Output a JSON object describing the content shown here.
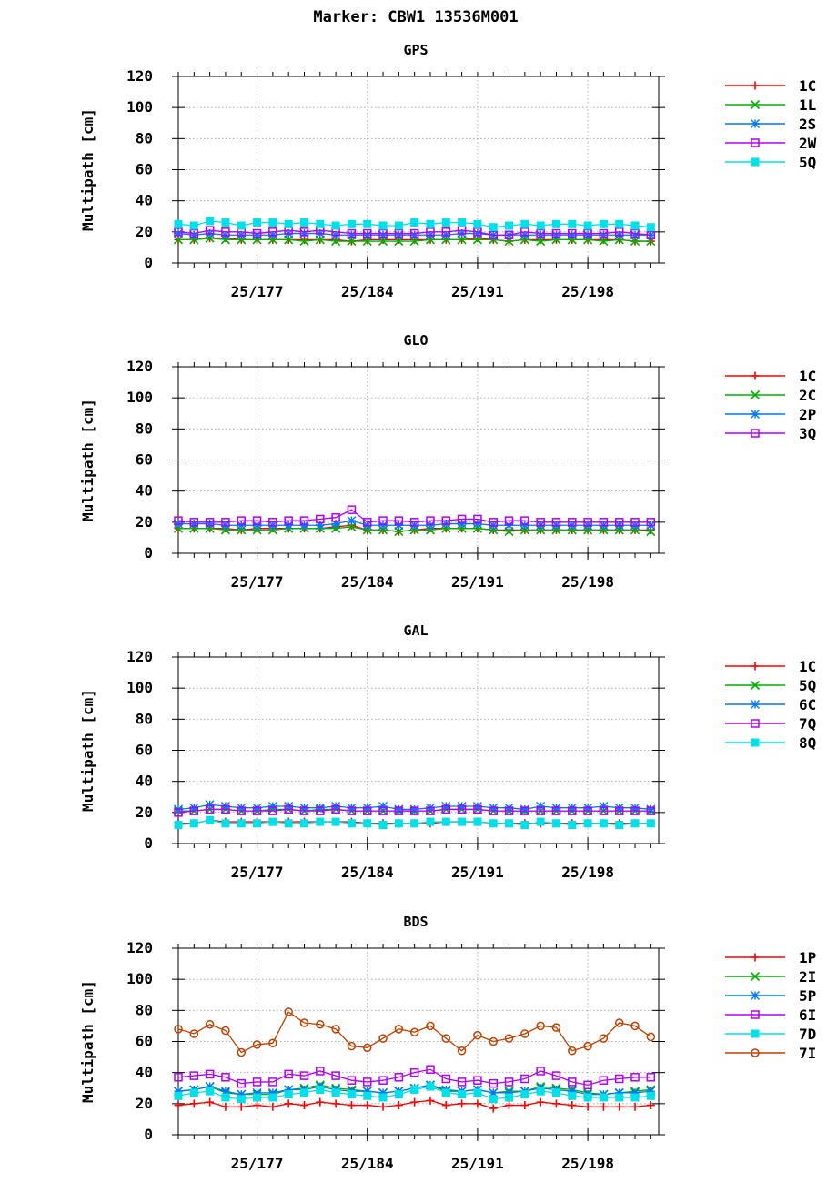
{
  "figure_title": "Marker: CBW1 13536M001",
  "colors": {
    "1C": "#ff0000",
    "1L": "#00b000",
    "2S": "#0077ff",
    "2W": "#b000ff",
    "5Q": "#00e0e8",
    "2C": "#00b000",
    "2P": "#0077ff",
    "3Q": "#b000ff",
    "GAL_5Q": "#00b000",
    "6C": "#0077ff",
    "7Q": "#b000ff",
    "8Q": "#00e0e8",
    "1P": "#ff0000",
    "2I": "#00b000",
    "5P": "#0077ff",
    "6I": "#b000ff",
    "7D": "#00e0e8",
    "7I": "#c04000"
  },
  "chart_data": [
    {
      "type": "line",
      "title": "GPS",
      "ylabel": "Multipath [cm]",
      "xlabel": "",
      "ylim": [
        0,
        120
      ],
      "yticks": [
        0,
        20,
        40,
        60,
        80,
        100,
        120
      ],
      "xlim": [
        172,
        202.5
      ],
      "xticks": [
        177,
        184,
        191,
        198
      ],
      "xticklabels": [
        "25/177",
        "25/184",
        "25/191",
        "25/198"
      ],
      "grid": true,
      "legend": "right",
      "x": [
        172,
        173,
        174,
        175,
        176,
        177,
        178,
        179,
        180,
        181,
        182,
        183,
        184,
        185,
        186,
        187,
        188,
        189,
        190,
        191,
        192,
        193,
        194,
        195,
        196,
        197,
        198,
        199,
        200,
        201,
        202
      ],
      "series": [
        {
          "name": "1C",
          "marker": "plus",
          "color": "#ff0000",
          "values": [
            15,
            15,
            16,
            16,
            15,
            15,
            15,
            15,
            15,
            15,
            15,
            14,
            15,
            15,
            15,
            15,
            15,
            15,
            15,
            16,
            15,
            14,
            15,
            15,
            15,
            15,
            15,
            15,
            15,
            14,
            14
          ]
        },
        {
          "name": "1L",
          "marker": "x",
          "color": "#00b000",
          "values": [
            15,
            15,
            16,
            15,
            15,
            15,
            15,
            15,
            14,
            15,
            14,
            14,
            14,
            14,
            14,
            14,
            15,
            15,
            15,
            15,
            15,
            14,
            15,
            14,
            15,
            15,
            15,
            14,
            15,
            14,
            14
          ]
        },
        {
          "name": "2S",
          "marker": "star",
          "color": "#0077ff",
          "values": [
            19,
            18,
            19,
            18,
            18,
            18,
            18,
            19,
            19,
            19,
            18,
            18,
            18,
            18,
            18,
            18,
            18,
            18,
            19,
            19,
            18,
            18,
            18,
            18,
            18,
            18,
            18,
            18,
            18,
            18,
            18
          ]
        },
        {
          "name": "2W",
          "marker": "square",
          "color": "#b000ff",
          "values": [
            20,
            19,
            21,
            20,
            20,
            19,
            20,
            21,
            20,
            21,
            20,
            19,
            19,
            19,
            19,
            19,
            20,
            20,
            21,
            20,
            18,
            18,
            20,
            19,
            19,
            19,
            19,
            19,
            20,
            19,
            18
          ]
        },
        {
          "name": "5Q",
          "marker": "filled-square",
          "color": "#00e0e8",
          "values": [
            25,
            24,
            27,
            26,
            24,
            26,
            26,
            25,
            26,
            25,
            24,
            25,
            25,
            24,
            24,
            26,
            25,
            26,
            26,
            25,
            23,
            24,
            25,
            24,
            25,
            25,
            24,
            25,
            25,
            24,
            23
          ]
        }
      ]
    },
    {
      "type": "line",
      "title": "GLO",
      "ylabel": "Multipath [cm]",
      "xlabel": "",
      "ylim": [
        0,
        120
      ],
      "yticks": [
        0,
        20,
        40,
        60,
        80,
        100,
        120
      ],
      "xlim": [
        172,
        202.5
      ],
      "xticks": [
        177,
        184,
        191,
        198
      ],
      "xticklabels": [
        "25/177",
        "25/184",
        "25/191",
        "25/198"
      ],
      "grid": true,
      "legend": "right",
      "x": [
        172,
        173,
        174,
        175,
        176,
        177,
        178,
        179,
        180,
        181,
        182,
        183,
        184,
        185,
        186,
        187,
        188,
        189,
        190,
        191,
        192,
        193,
        194,
        195,
        196,
        197,
        198,
        199,
        200,
        201,
        202
      ],
      "series": [
        {
          "name": "1C",
          "marker": "plus",
          "color": "#ff0000",
          "values": [
            16,
            16,
            16,
            16,
            15,
            16,
            16,
            16,
            16,
            16,
            17,
            18,
            15,
            15,
            14,
            15,
            16,
            16,
            16,
            16,
            15,
            15,
            15,
            15,
            15,
            15,
            15,
            15,
            15,
            15,
            15
          ]
        },
        {
          "name": "2C",
          "marker": "x",
          "color": "#00b000",
          "values": [
            16,
            16,
            16,
            15,
            15,
            15,
            15,
            16,
            16,
            16,
            16,
            17,
            15,
            15,
            14,
            15,
            15,
            16,
            16,
            16,
            15,
            14,
            15,
            15,
            15,
            15,
            15,
            15,
            15,
            15,
            14
          ]
        },
        {
          "name": "2P",
          "marker": "star",
          "color": "#0077ff",
          "values": [
            19,
            19,
            19,
            18,
            18,
            18,
            18,
            18,
            18,
            18,
            19,
            21,
            18,
            18,
            18,
            18,
            18,
            19,
            19,
            19,
            18,
            18,
            18,
            18,
            18,
            18,
            18,
            18,
            18,
            18,
            18
          ]
        },
        {
          "name": "3Q",
          "marker": "square",
          "color": "#b000ff",
          "values": [
            21,
            20,
            20,
            20,
            21,
            21,
            20,
            21,
            21,
            22,
            23,
            28,
            20,
            21,
            21,
            20,
            21,
            21,
            22,
            22,
            20,
            21,
            21,
            20,
            20,
            20,
            20,
            20,
            20,
            20,
            20
          ]
        }
      ]
    },
    {
      "type": "line",
      "title": "GAL",
      "ylabel": "Multipath [cm]",
      "xlabel": "",
      "ylim": [
        0,
        120
      ],
      "yticks": [
        0,
        20,
        40,
        60,
        80,
        100,
        120
      ],
      "xlim": [
        172,
        202.5
      ],
      "xticks": [
        177,
        184,
        191,
        198
      ],
      "xticklabels": [
        "25/177",
        "25/184",
        "25/191",
        "25/198"
      ],
      "grid": true,
      "legend": "right",
      "x": [
        172,
        173,
        174,
        175,
        176,
        177,
        178,
        179,
        180,
        181,
        182,
        183,
        184,
        185,
        186,
        187,
        188,
        189,
        190,
        191,
        192,
        193,
        194,
        195,
        196,
        197,
        198,
        199,
        200,
        201,
        202
      ],
      "series": [
        {
          "name": "1C",
          "marker": "plus",
          "color": "#ff0000",
          "values": [
            13,
            13,
            15,
            14,
            14,
            14,
            14,
            14,
            14,
            14,
            14,
            14,
            13,
            13,
            13,
            13,
            13,
            14,
            14,
            14,
            13,
            13,
            13,
            13,
            13,
            13,
            13,
            13,
            13,
            13,
            13
          ]
        },
        {
          "name": "5Q",
          "marker": "x",
          "color": "#00b000",
          "values": [
            21,
            21,
            22,
            22,
            21,
            21,
            22,
            22,
            21,
            22,
            22,
            21,
            21,
            21,
            21,
            21,
            21,
            22,
            22,
            22,
            21,
            21,
            21,
            21,
            21,
            21,
            21,
            21,
            21,
            21,
            21
          ]
        },
        {
          "name": "6C",
          "marker": "star",
          "color": "#0077ff",
          "values": [
            22,
            23,
            25,
            24,
            23,
            23,
            24,
            24,
            23,
            23,
            24,
            23,
            23,
            24,
            22,
            22,
            23,
            24,
            24,
            24,
            23,
            23,
            22,
            24,
            23,
            23,
            23,
            24,
            23,
            23,
            22
          ]
        },
        {
          "name": "7Q",
          "marker": "square",
          "color": "#b000ff",
          "values": [
            20,
            21,
            22,
            22,
            21,
            21,
            21,
            22,
            21,
            21,
            22,
            21,
            21,
            21,
            21,
            21,
            21,
            22,
            22,
            22,
            21,
            21,
            21,
            21,
            21,
            21,
            21,
            21,
            21,
            21,
            21
          ]
        },
        {
          "name": "8Q",
          "marker": "filled-square",
          "color": "#00e0e8",
          "values": [
            12,
            13,
            15,
            13,
            13,
            13,
            14,
            13,
            13,
            14,
            14,
            13,
            13,
            12,
            13,
            13,
            14,
            14,
            14,
            14,
            13,
            13,
            12,
            14,
            13,
            12,
            13,
            13,
            12,
            13,
            13
          ]
        }
      ]
    },
    {
      "type": "line",
      "title": "BDS",
      "ylabel": "Multipath [cm]",
      "xlabel": "",
      "ylim": [
        0,
        120
      ],
      "yticks": [
        0,
        20,
        40,
        60,
        80,
        100,
        120
      ],
      "xlim": [
        172,
        202.5
      ],
      "xticks": [
        177,
        184,
        191,
        198
      ],
      "xticklabels": [
        "25/177",
        "25/184",
        "25/191",
        "25/198"
      ],
      "grid": true,
      "legend": "right",
      "x": [
        172,
        173,
        174,
        175,
        176,
        177,
        178,
        179,
        180,
        181,
        182,
        183,
        184,
        185,
        186,
        187,
        188,
        189,
        190,
        191,
        192,
        193,
        194,
        195,
        196,
        197,
        198,
        199,
        200,
        201,
        202
      ],
      "series": [
        {
          "name": "1P",
          "marker": "plus",
          "color": "#ff0000",
          "values": [
            19,
            20,
            21,
            18,
            18,
            19,
            18,
            20,
            19,
            21,
            20,
            19,
            19,
            18,
            19,
            21,
            22,
            19,
            20,
            20,
            17,
            19,
            19,
            21,
            20,
            19,
            18,
            18,
            18,
            18,
            19
          ]
        },
        {
          "name": "2I",
          "marker": "x",
          "color": "#00b000",
          "values": [
            28,
            29,
            31,
            27,
            26,
            26,
            26,
            29,
            30,
            32,
            30,
            29,
            28,
            27,
            28,
            30,
            32,
            28,
            28,
            29,
            27,
            28,
            28,
            31,
            30,
            29,
            27,
            26,
            27,
            28,
            29
          ]
        },
        {
          "name": "5P",
          "marker": "star",
          "color": "#0077ff",
          "values": [
            28,
            29,
            31,
            28,
            26,
            27,
            27,
            29,
            29,
            31,
            29,
            28,
            28,
            27,
            28,
            30,
            32,
            29,
            28,
            29,
            27,
            27,
            28,
            30,
            29,
            28,
            26,
            26,
            27,
            27,
            28
          ]
        },
        {
          "name": "6I",
          "marker": "square",
          "color": "#b000ff",
          "values": [
            37,
            38,
            39,
            37,
            33,
            34,
            34,
            39,
            38,
            41,
            38,
            35,
            34,
            35,
            37,
            40,
            42,
            36,
            34,
            35,
            33,
            34,
            36,
            41,
            38,
            34,
            32,
            35,
            36,
            37,
            37
          ]
        },
        {
          "name": "7D",
          "marker": "filled-square",
          "color": "#00e0e8",
          "values": [
            25,
            27,
            28,
            24,
            23,
            24,
            24,
            26,
            27,
            29,
            27,
            26,
            25,
            24,
            26,
            29,
            31,
            27,
            26,
            27,
            23,
            24,
            26,
            28,
            27,
            25,
            24,
            24,
            24,
            24,
            25
          ]
        },
        {
          "name": "7I",
          "marker": "circle",
          "color": "#c04000",
          "values": [
            68,
            65,
            71,
            67,
            53,
            58,
            59,
            79,
            72,
            71,
            68,
            57,
            56,
            62,
            68,
            66,
            70,
            62,
            54,
            64,
            60,
            62,
            65,
            70,
            69,
            54,
            57,
            62,
            72,
            70,
            63
          ]
        }
      ]
    }
  ]
}
